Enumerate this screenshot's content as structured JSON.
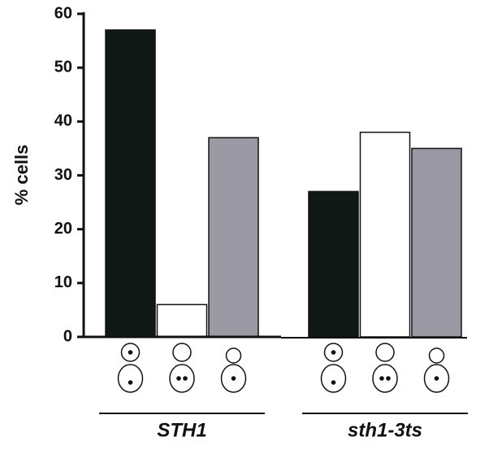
{
  "chart_data": {
    "type": "bar",
    "y_label": "% cells",
    "categories": [
      "STH1",
      "sth1-3ts"
    ],
    "series": [
      {
        "color": "#101816",
        "values": [
          57,
          27
        ]
      },
      {
        "color": "#ffffff",
        "values": [
          6,
          38
        ]
      },
      {
        "color": "#9a99a4",
        "values": [
          37,
          35
        ]
      }
    ],
    "ylim": [
      0,
      60
    ],
    "yticks": [
      0,
      10,
      20,
      30,
      40,
      50,
      60
    ]
  }
}
